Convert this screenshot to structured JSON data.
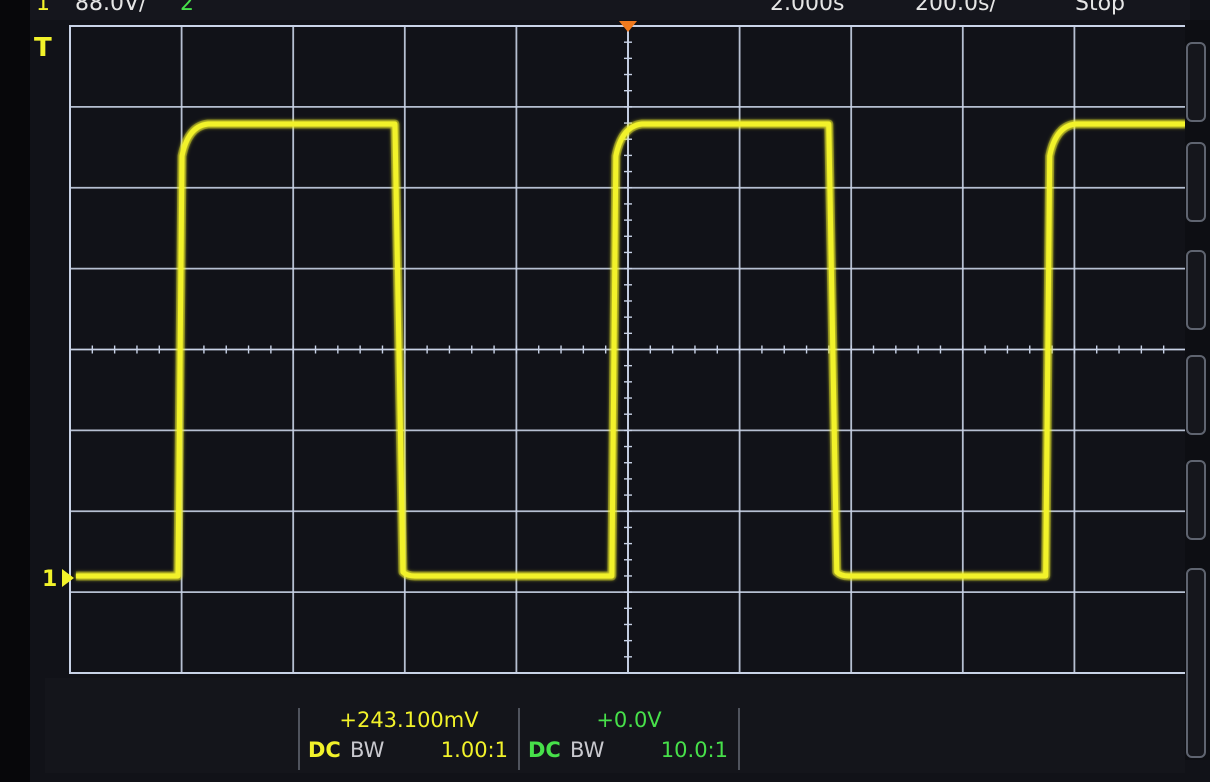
{
  "top_bar": {
    "channel_number": "1",
    "volts_per_div": "88.0V/",
    "channel2_number": "2",
    "time_per_div": "2.000s",
    "sample_rate": "200.0s/",
    "run_status": "Stop"
  },
  "colors": {
    "ch1": "#f2f22a",
    "ch2": "#47e04a",
    "grid": "#c8d2e6",
    "background": "#111218",
    "trigger_marker": "#f07a1e"
  },
  "markers": {
    "trigger_level_label": "T",
    "ch1_ground_label": "1"
  },
  "waveform": {
    "type": "square",
    "periods_visible": 2.6,
    "duty_cycle": 0.5
  },
  "channels": [
    {
      "name": "ch1",
      "offset": "+243.100mV",
      "coupling": "DC",
      "bw": "BW",
      "probe": "1.00:1"
    },
    {
      "name": "ch2",
      "offset": "+0.0V",
      "coupling": "DC",
      "bw": "BW",
      "probe": "10.0:1"
    }
  ]
}
